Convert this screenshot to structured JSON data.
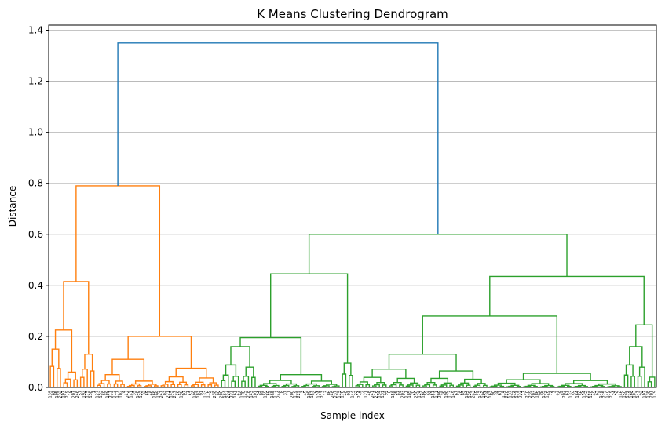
{
  "chart_data": {
    "type": "dendrogram",
    "title": "K Means Clustering Dendrogram",
    "xlabel": "Sample index",
    "ylabel": "Distance",
    "ylim": [
      0,
      1.42
    ],
    "yticks": [
      0.0,
      0.2,
      0.4,
      0.6,
      0.8,
      1.0,
      1.2,
      1.4
    ],
    "yticklabels": [
      "0.0",
      "0.2",
      "0.4",
      "0.6",
      "0.8",
      "1.0",
      "1.2",
      "1.4"
    ],
    "grid": "horizontal",
    "colors": {
      "root": "#1f77b4",
      "cluster_1": "#ff7f0e",
      "cluster_2": "#2ca02c",
      "grid": "#b0b0b0"
    },
    "leaf_labels": [
      "139",
      "62",
      "105",
      "232",
      "197",
      "219",
      "18",
      "207",
      "246",
      "57",
      "192",
      "175",
      "158",
      "1",
      "127",
      "153",
      "60",
      "188",
      "211",
      "112",
      "177",
      "102",
      "74",
      "242",
      "141",
      "35",
      "148",
      "122",
      "32",
      "68",
      "46",
      "166",
      "199",
      "247",
      "83",
      "221",
      "145",
      "217",
      "26",
      "190",
      "97",
      "71",
      "52",
      "108",
      "183",
      "91",
      "133",
      "116",
      "15",
      "236",
      "80",
      "206",
      "164",
      "224",
      "231",
      "161",
      "42",
      "198",
      "125",
      "218",
      "143",
      "101",
      "54",
      "89",
      "155",
      "66",
      "168",
      "172",
      "244",
      "8",
      "37",
      "11",
      "200",
      "119",
      "229",
      "3",
      "45",
      "109",
      "157",
      "76",
      "124",
      "213",
      "13",
      "86",
      "248",
      "237",
      "175",
      "178",
      "40",
      "93",
      "144",
      "22",
      "214",
      "72",
      "121",
      "48",
      "241",
      "216",
      "154",
      "131",
      "99",
      "6",
      "156",
      "25",
      "84",
      "203",
      "117",
      "185",
      "20",
      "230",
      "124",
      "160",
      "59",
      "92",
      "151",
      "111",
      "208",
      "36",
      "196",
      "173",
      "149",
      "67",
      "28",
      "85",
      "104",
      "129",
      "243",
      "55",
      "142",
      "196",
      "234",
      "163",
      "90",
      "34",
      "61",
      "114",
      "220",
      "137",
      "172",
      "173",
      "233",
      "17",
      "210",
      "239",
      "203",
      "186",
      "98",
      "135",
      "126",
      "72",
      "7",
      "47",
      "28",
      "202",
      "67",
      "133",
      "55",
      "164",
      "56",
      "134",
      "225",
      "120",
      "45",
      "63",
      "146",
      "225",
      "140",
      "219",
      "24",
      "79",
      "146",
      "150",
      "172",
      "168",
      "103",
      "147",
      "92",
      "107",
      "138",
      "201",
      "179"
    ],
    "merges": [
      {
        "left": [
          0,
          184
        ],
        "right": [
          0,
          184
        ],
        "height": 0.0
      }
    ],
    "clusters": [
      {
        "name": "root",
        "children": [
          "cluster_1",
          "cluster_2"
        ],
        "height": 1.35
      },
      {
        "name": "cluster_1",
        "height": 0.79,
        "subclusters": [
          0.415,
          0.2
        ]
      },
      {
        "name": "cluster_2",
        "height": 0.6,
        "subclusters": [
          0.445,
          0.435
        ]
      }
    ]
  }
}
